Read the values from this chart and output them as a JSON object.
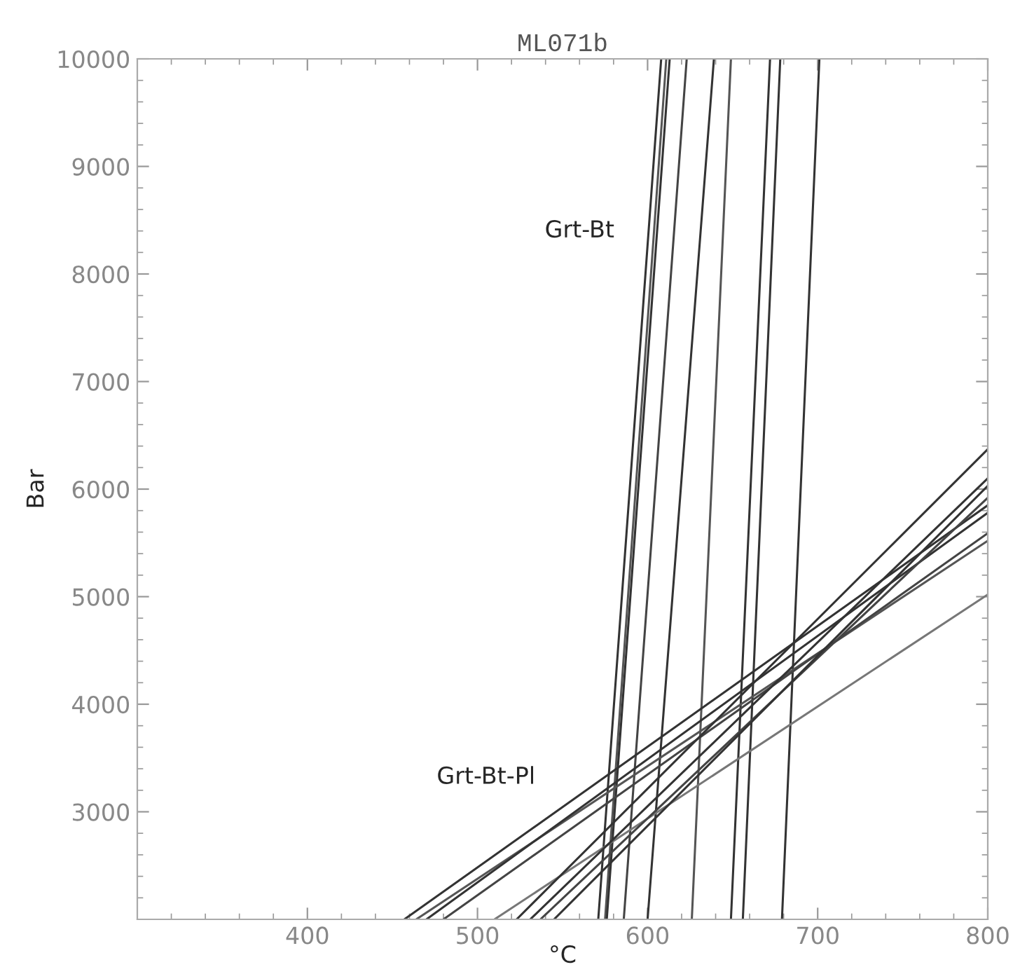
{
  "chart_data": {
    "type": "line",
    "title": "ML071b",
    "xlabel": "°C",
    "ylabel": "Bar",
    "xlim": [
      300,
      800
    ],
    "ylim": [
      2000,
      10000
    ],
    "xticks": [
      400,
      500,
      600,
      700,
      800
    ],
    "yticks": [
      3000,
      4000,
      5000,
      6000,
      7000,
      8000,
      9000,
      10000
    ],
    "grid": false,
    "marker": "none",
    "line_style": "solid",
    "annotations": [
      "Grt-Bt",
      "Grt-Bt-Pl"
    ],
    "series": [
      {
        "color": "#333333",
        "x": [
          571,
          608
        ],
        "values": [
          2000,
          10000
        ]
      },
      {
        "color": "#555555",
        "x": [
          575,
          611
        ],
        "values": [
          2000,
          10000
        ]
      },
      {
        "color": "#333333",
        "x": [
          576,
          613
        ],
        "values": [
          2000,
          10000
        ]
      },
      {
        "color": "#444444",
        "x": [
          586,
          623
        ],
        "values": [
          2000,
          10000
        ]
      },
      {
        "color": "#333333",
        "x": [
          600,
          639
        ],
        "values": [
          2000,
          10000
        ]
      },
      {
        "color": "#555555",
        "x": [
          626,
          649
        ],
        "values": [
          2000,
          10000
        ]
      },
      {
        "color": "#333333",
        "x": [
          649,
          672
        ],
        "values": [
          2000,
          10000
        ]
      },
      {
        "color": "#333333",
        "x": [
          656,
          678
        ],
        "values": [
          2000,
          10000
        ]
      },
      {
        "color": "#333333",
        "x": [
          679,
          701
        ],
        "values": [
          2000,
          10000
        ]
      },
      {
        "color": "#333333",
        "x": [
          457,
          800
        ],
        "values": [
          2000,
          5850
        ]
      },
      {
        "color": "#555555",
        "x": [
          464,
          800
        ],
        "values": [
          2000,
          5520
        ]
      },
      {
        "color": "#333333",
        "x": [
          470,
          800
        ],
        "values": [
          2000,
          5780
        ]
      },
      {
        "color": "#444444",
        "x": [
          480,
          800
        ],
        "values": [
          2000,
          5590
        ]
      },
      {
        "color": "#777777",
        "x": [
          510,
          800
        ],
        "values": [
          2000,
          5020
        ]
      },
      {
        "color": "#333333",
        "x": [
          523,
          800
        ],
        "values": [
          2000,
          6370
        ]
      },
      {
        "color": "#333333",
        "x": [
          531,
          800
        ],
        "values": [
          2000,
          6100
        ]
      },
      {
        "color": "#444444",
        "x": [
          537,
          800
        ],
        "values": [
          2000,
          5920
        ]
      },
      {
        "color": "#333333",
        "x": [
          545,
          800
        ],
        "values": [
          2000,
          6030
        ]
      }
    ]
  }
}
